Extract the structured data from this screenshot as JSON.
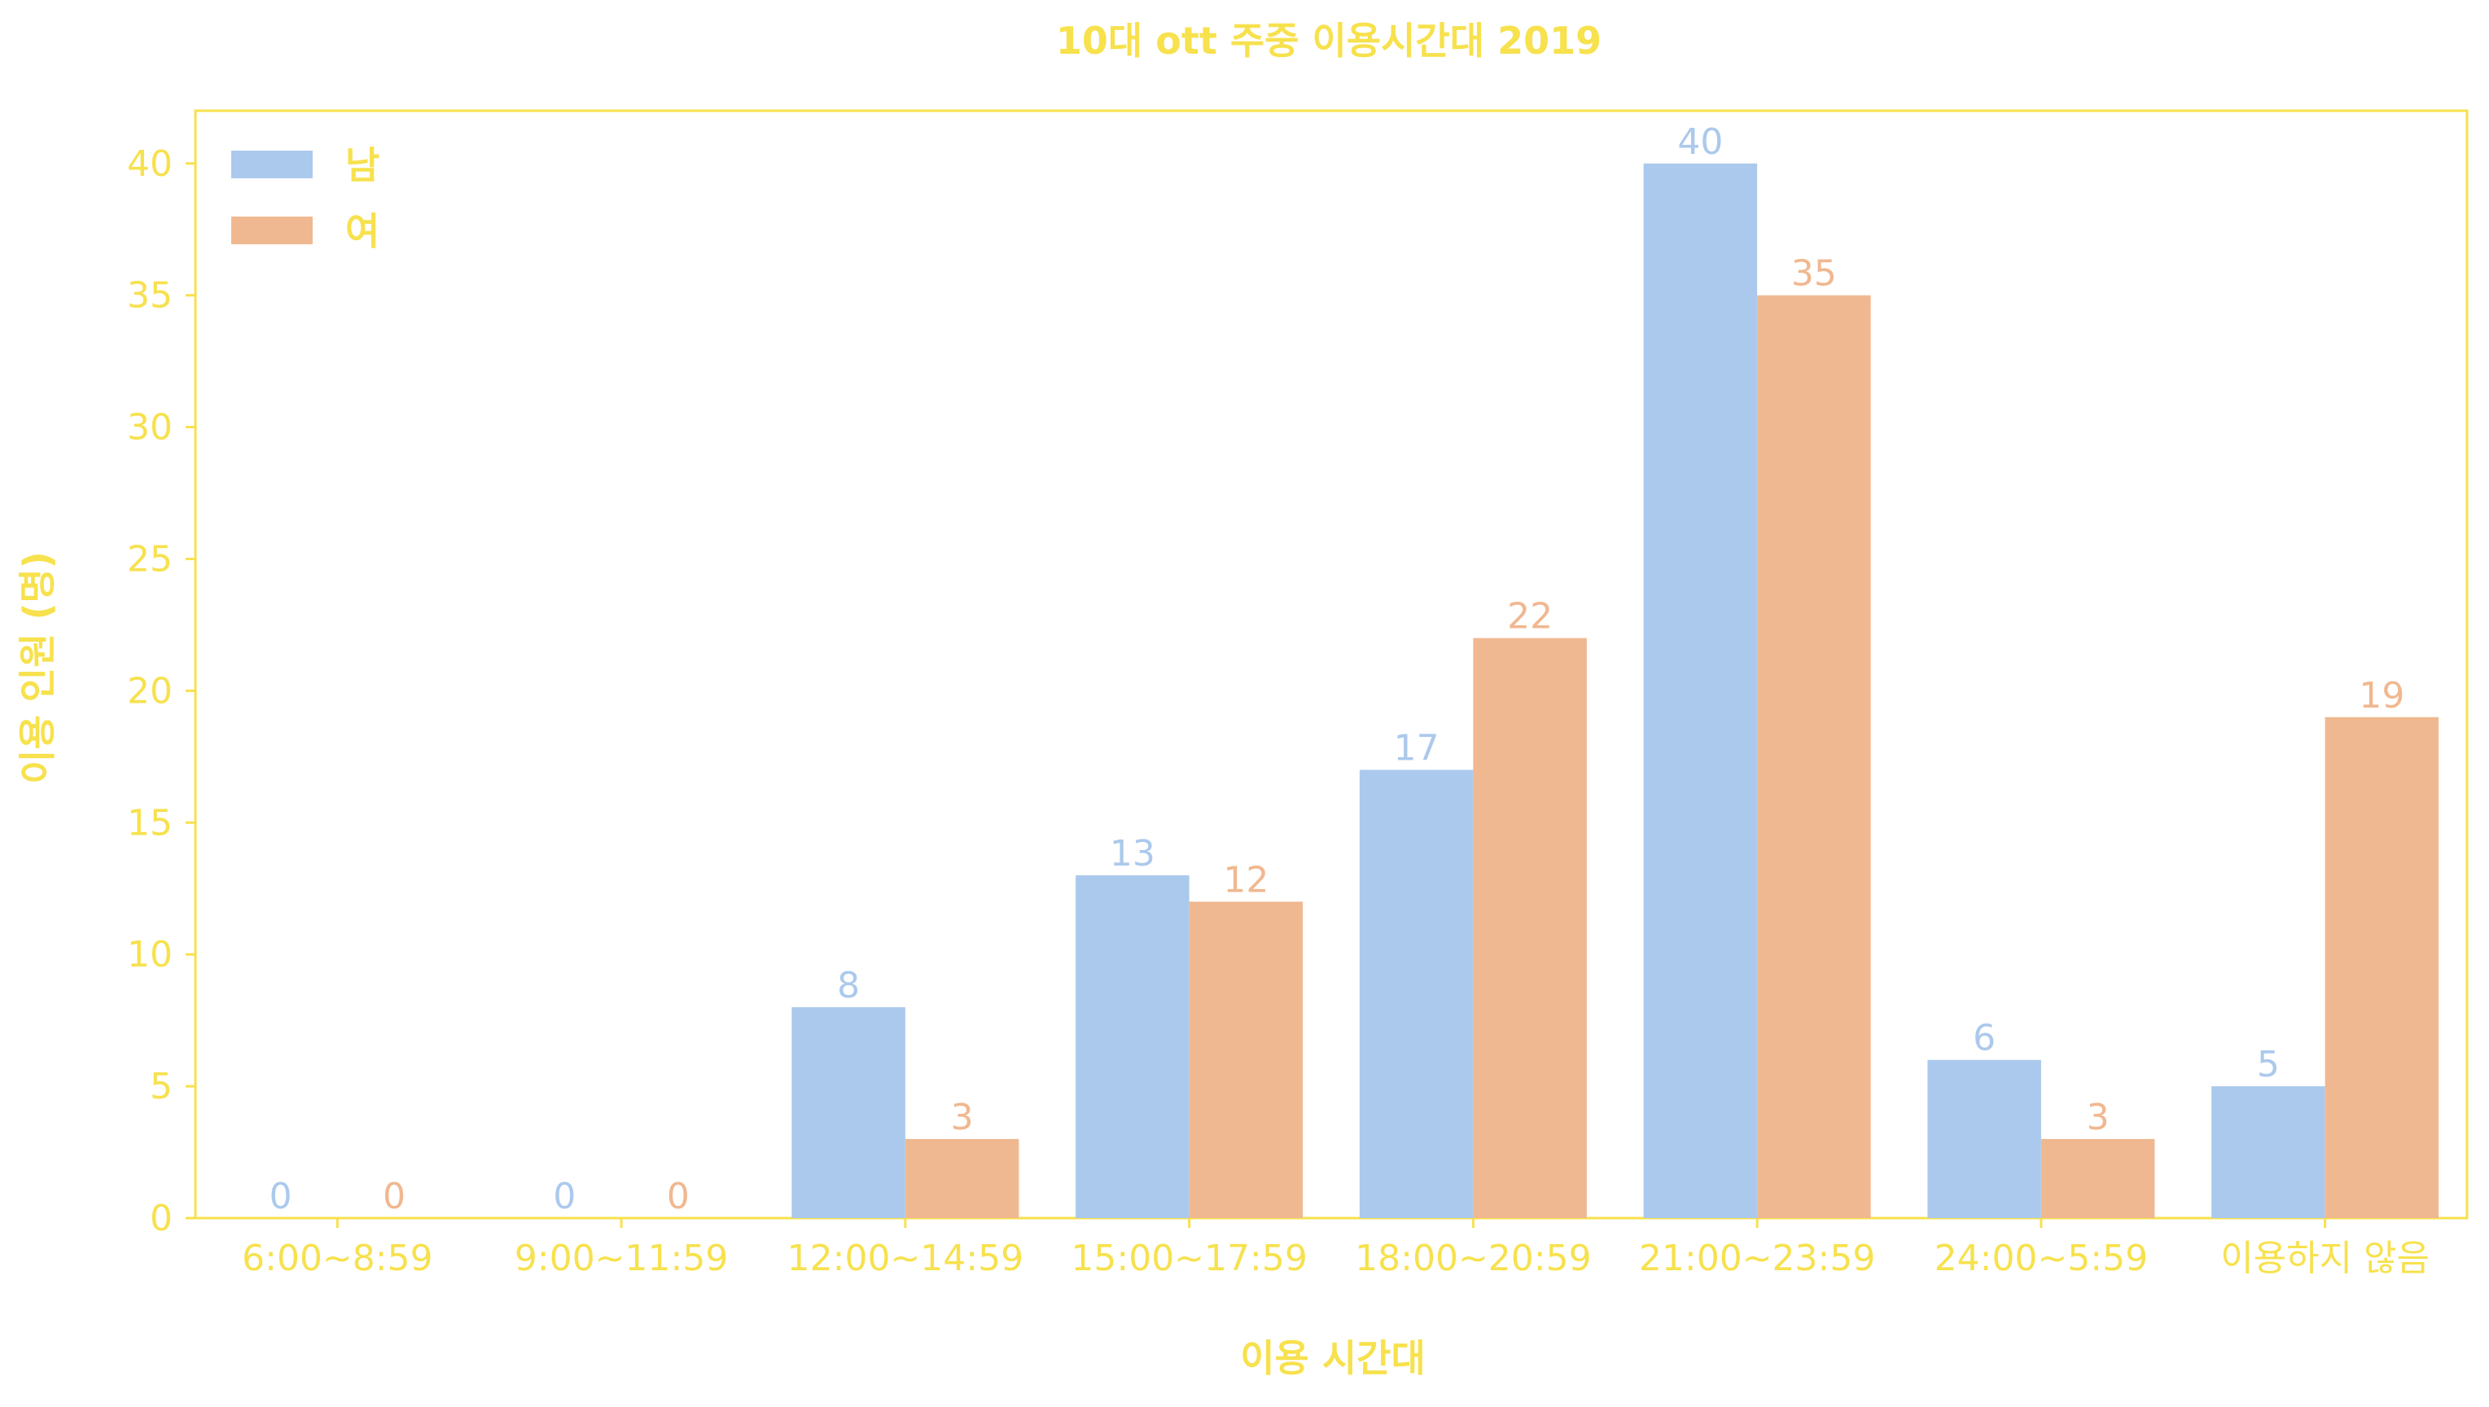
{
  "chart_data": {
    "type": "bar",
    "title": "10대 ott 주중 이용시간대 2019",
    "xlabel": "이용 시간대",
    "ylabel": "이용 인원 (명)",
    "ylim": [
      0,
      42
    ],
    "yticks": [
      0,
      5,
      10,
      15,
      20,
      25,
      30,
      35,
      40
    ],
    "grid": false,
    "legend_position": "top-left",
    "categories": [
      "6:00~8:59",
      "9:00~11:59",
      "12:00~14:59",
      "15:00~17:59",
      "18:00~20:59",
      "21:00~23:59",
      "24:00~5:59",
      "이용하지 않음"
    ],
    "series": [
      {
        "name": "남",
        "values": [
          0,
          0,
          8,
          13,
          17,
          40,
          6,
          5
        ],
        "color": "#abc9ec"
      },
      {
        "name": "여",
        "values": [
          0,
          0,
          3,
          12,
          22,
          35,
          3,
          19
        ],
        "color": "#f0b890"
      }
    ],
    "text_color": "#f7e14d",
    "axis_color": "#f7e14d"
  }
}
